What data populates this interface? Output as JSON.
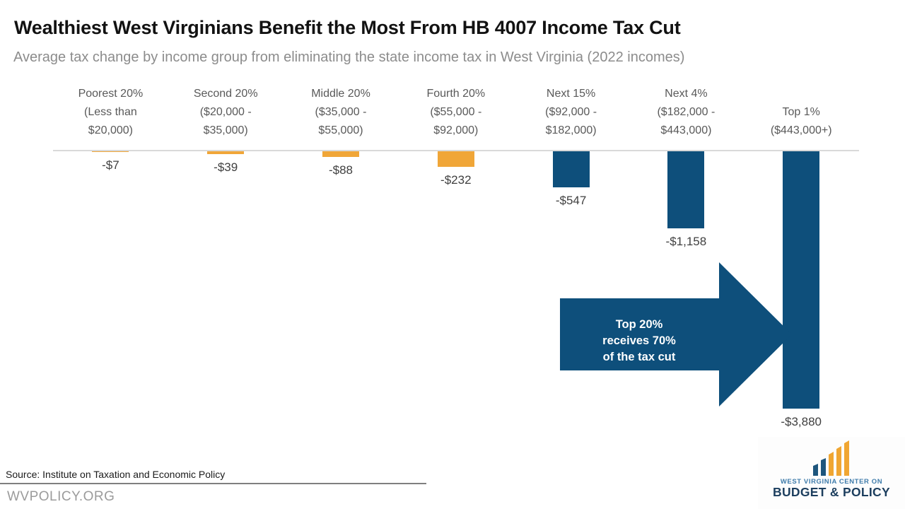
{
  "header": {
    "title": "Wealthiest West Virginians Benefit the Most From HB 4007 Income Tax Cut",
    "subtitle": "Average tax change by income group from eliminating the state income tax in West Virginia (2022 incomes)"
  },
  "chart_data": {
    "type": "bar",
    "title": "Wealthiest West Virginians Benefit the Most From HB 4007 Income Tax Cut",
    "subtitle": "Average tax change by income group from eliminating the state income tax in West Virginia (2022 incomes)",
    "categories": [
      "Poorest 20% (Less than $20,000)",
      "Second 20% ($20,000 - $35,000)",
      "Middle 20% ($35,000 - $55,000)",
      "Fourth 20% ($55,000 - $92,000)",
      "Next 15% ($92,000 - $182,000)",
      "Next 4% ($182,000 - $443,000)",
      "Top 1% ($443,000+)"
    ],
    "category_lines": [
      [
        "Poorest 20%",
        "(Less than",
        "$20,000)"
      ],
      [
        "Second 20%",
        "($20,000 -",
        "$35,000)"
      ],
      [
        "Middle 20%",
        "($35,000 -",
        "$55,000)"
      ],
      [
        "Fourth 20%",
        "($55,000 -",
        "$92,000)"
      ],
      [
        "Next 15%",
        "($92,000 -",
        "$182,000)"
      ],
      [
        "Next 4%",
        "($182,000 -",
        "$443,000)"
      ],
      [
        "Top 1%",
        "($443,000+)"
      ]
    ],
    "values": [
      -7,
      -39,
      -88,
      -232,
      -547,
      -1158,
      -3880
    ],
    "value_labels": [
      "-$7",
      "-$39",
      "-$88",
      "-$232",
      "-$547",
      "-$1,158",
      "-$3,880"
    ],
    "bar_colors": [
      "#F0A638",
      "#F0A638",
      "#F0A638",
      "#F0A638",
      "#0E4F7B",
      "#0E4F7B",
      "#0E4F7B"
    ],
    "xlabel": "",
    "ylabel": "",
    "ylim": [
      -4000,
      0
    ],
    "grid": false,
    "legend": false,
    "baseline_color": "#D9D9D9",
    "annotation": {
      "lines": [
        "Top 20%",
        "receives 70%",
        "of the tax cut"
      ],
      "color": "#0E4F7B",
      "text_color": "#FFFFFF"
    }
  },
  "footer": {
    "source": "Source: Institute on Taxation and Economic Policy",
    "site": "WVPOLICY.ORG"
  },
  "logo": {
    "line1": "WEST VIRGINIA CENTER ON",
    "line2": "BUDGET & POLICY",
    "bar_blue": "#1E567D",
    "bar_gold": "#F0A632"
  }
}
